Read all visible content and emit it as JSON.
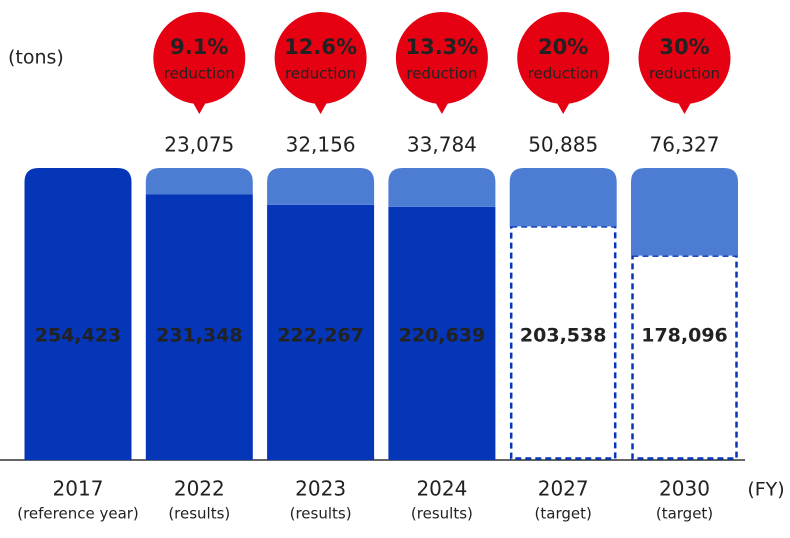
{
  "chart_data": {
    "type": "bar",
    "stacked": true,
    "y_unit": "(tons)",
    "x_unit": "(FY)",
    "categories": [
      "2017",
      "2022",
      "2023",
      "2024",
      "2027",
      "2030"
    ],
    "category_notes": [
      "(reference year)",
      "(results)",
      "(results)",
      "(results)",
      "(target)",
      "(target)"
    ],
    "target": [
      false,
      false,
      false,
      false,
      true,
      true
    ],
    "series": [
      {
        "color": "#0536b8",
        "values": [
          254423,
          231348,
          222267,
          220639,
          203538,
          178096
        ],
        "value_labels": [
          "254,423",
          "231,348",
          "222,267",
          "220,639",
          "203,538",
          "178,096"
        ]
      },
      {
        "color": "#4d7dd3",
        "values": [
          null,
          23075,
          32156,
          33784,
          50885,
          76327
        ],
        "value_labels": [
          null,
          "23,075",
          "32,156",
          "33,784",
          "50,885",
          "76,327"
        ]
      }
    ],
    "reduction_rates": {
      "color": "#e50012",
      "values": [
        null,
        9.1,
        12.6,
        13.3,
        20,
        30
      ],
      "value_labels": [
        null,
        "9.1%",
        "12.6%",
        "13.3%",
        "20%",
        "30%"
      ],
      "text": "reduction"
    },
    "ylim": [
      0,
      254423
    ]
  }
}
